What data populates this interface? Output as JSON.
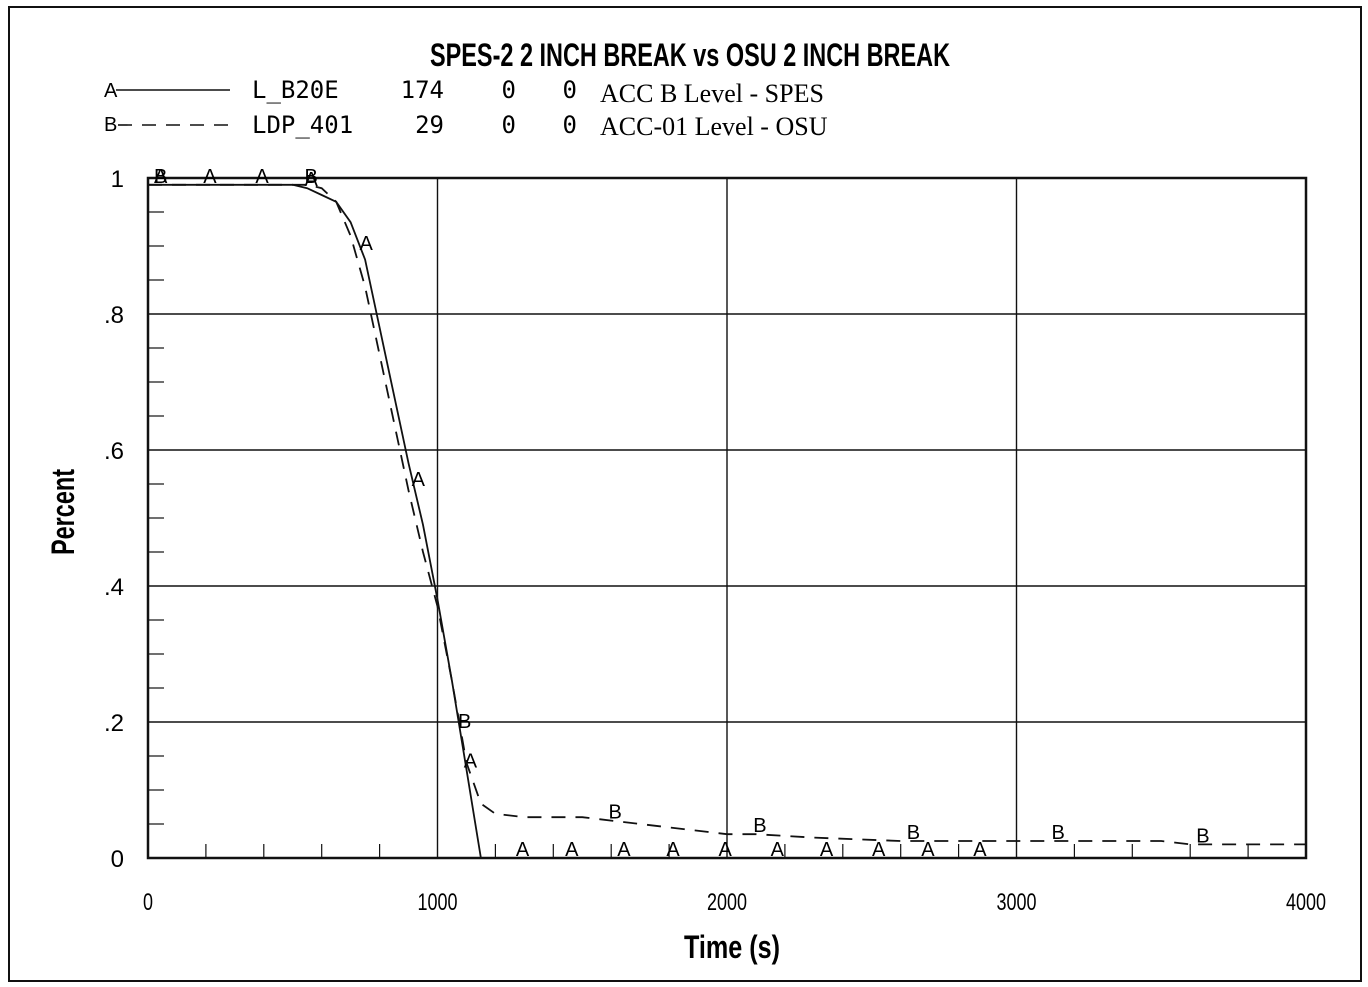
{
  "chart_data": {
    "type": "line",
    "title": "SPES-2 2 INCH BREAK vs OSU 2 INCH BREAK",
    "xlabel": "Time (s)",
    "ylabel": "Percent",
    "xlim": [
      0,
      4000
    ],
    "ylim": [
      0,
      1
    ],
    "x_ticks": [
      "0",
      "1000",
      "2000",
      "3000",
      "4000"
    ],
    "y_ticks": [
      "0",
      ".2",
      ".4",
      ".6",
      ".8",
      "1"
    ],
    "grid": true,
    "legend_position": "top-left",
    "legend": [
      {
        "marker": "A",
        "name": "L_B20E",
        "col1": "174",
        "col2": "0",
        "col3": "0",
        "desc": "ACC B Level - SPES",
        "style": "solid"
      },
      {
        "marker": "B",
        "name": "LDP_401",
        "col1": "29",
        "col2": "0",
        "col3": "0",
        "desc": "ACC-01 Level - OSU",
        "style": "dashed"
      }
    ],
    "series": [
      {
        "marker": "A",
        "style": "solid",
        "x": [
          0,
          100,
          200,
          300,
          400,
          500,
          550,
          600,
          650,
          700,
          750,
          800,
          850,
          900,
          950,
          1000,
          1050,
          1100,
          1150,
          1300,
          1500,
          2000,
          2500,
          3000,
          4000
        ],
        "y": [
          0.99,
          0.99,
          0.99,
          0.99,
          0.99,
          0.99,
          0.985,
          0.975,
          0.965,
          0.935,
          0.88,
          0.78,
          0.68,
          0.58,
          0.49,
          0.38,
          0.26,
          0.13,
          0.0,
          0.0,
          0.0,
          0.0,
          0.0,
          0.0,
          0.0
        ],
        "marker_x": [
          30,
          200,
          380,
          550,
          740,
          920,
          1100,
          1280,
          1450,
          1630,
          1800,
          1980,
          2160,
          2330,
          2510,
          2680,
          2860
        ]
      },
      {
        "marker": "B",
        "style": "dashed",
        "x": [
          0,
          100,
          200,
          300,
          400,
          500,
          550,
          600,
          650,
          700,
          750,
          800,
          850,
          900,
          950,
          1000,
          1050,
          1100,
          1150,
          1200,
          1300,
          1500,
          1600,
          1800,
          2000,
          2100,
          2300,
          2600,
          3000,
          3500,
          3600,
          4000
        ],
        "y": [
          0.99,
          0.99,
          0.99,
          0.99,
          0.99,
          0.99,
          0.99,
          0.985,
          0.965,
          0.915,
          0.84,
          0.74,
          0.64,
          0.54,
          0.45,
          0.37,
          0.26,
          0.14,
          0.08,
          0.065,
          0.06,
          0.06,
          0.055,
          0.045,
          0.035,
          0.035,
          0.03,
          0.025,
          0.025,
          0.025,
          0.02,
          0.02
        ],
        "marker_x": [
          30,
          550,
          1080,
          1600,
          2100,
          2630,
          3130,
          3630
        ]
      }
    ]
  }
}
